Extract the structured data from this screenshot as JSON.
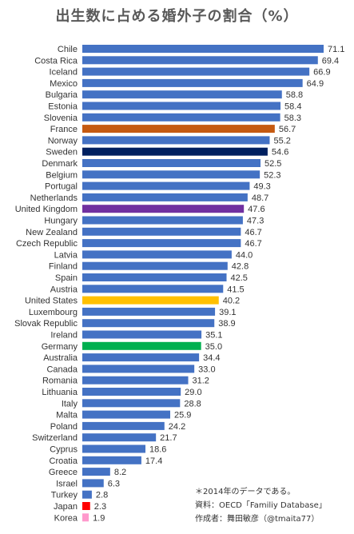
{
  "chart_data": {
    "type": "bar",
    "orientation": "horizontal",
    "title": "出生数に占める婚外子の割合（%）",
    "categories": [
      "Chile",
      "Costa Rica",
      "Iceland",
      "Mexico",
      "Bulgaria",
      "Estonia",
      "Slovenia",
      "France",
      "Norway",
      "Sweden",
      "Denmark",
      "Belgium",
      "Portugal",
      "Netherlands",
      "United Kingdom",
      "Hungary",
      "New Zealand",
      "Czech Republic",
      "Latvia",
      "Finland",
      "Spain",
      "Austria",
      "United States",
      "Luxembourg",
      "Slovak Republic",
      "Ireland",
      "Germany",
      "Australia",
      "Canada",
      "Romania",
      "Lithuania",
      "Italy",
      "Malta",
      "Poland",
      "Switzerland",
      "Cyprus",
      "Croatia",
      "Greece",
      "Israel",
      "Turkey",
      "Japan",
      "Korea"
    ],
    "values": [
      71.1,
      69.4,
      66.9,
      64.9,
      58.8,
      58.4,
      58.3,
      56.7,
      55.2,
      54.6,
      52.5,
      52.3,
      49.3,
      48.7,
      47.6,
      47.3,
      46.7,
      46.7,
      44.0,
      42.8,
      42.5,
      41.5,
      40.2,
      39.1,
      38.9,
      35.1,
      35.0,
      34.4,
      33.0,
      31.2,
      29.0,
      28.8,
      25.9,
      24.2,
      21.7,
      18.6,
      17.4,
      8.2,
      6.3,
      2.8,
      2.3,
      1.9
    ],
    "value_labels": [
      "71.1",
      "69.4",
      "66.9",
      "64.9",
      "58.8",
      "58.4",
      "58.3",
      "56.7",
      "55.2",
      "54.6",
      "52.5",
      "52.3",
      "49.3",
      "48.7",
      "47.6",
      "47.3",
      "46.7",
      "46.7",
      "44.0",
      "42.8",
      "42.5",
      "41.5",
      "40.2",
      "39.1",
      "38.9",
      "35.1",
      "35.0",
      "34.4",
      "33.0",
      "31.2",
      "29.0",
      "28.8",
      "25.9",
      "24.2",
      "21.7",
      "18.6",
      "17.4",
      "8.2",
      "6.3",
      "2.8",
      "2.3",
      "1.9"
    ],
    "colors": {
      "default": "#4472c4",
      "France": "#c55a11",
      "Sweden": "#002060",
      "United Kingdom": "#7030a0",
      "United States": "#ffc000",
      "Germany": "#00b050",
      "Japan": "#ff0000",
      "Korea": "#ff99cc"
    },
    "xlim": [
      0,
      75
    ],
    "grid": false,
    "legend": "none"
  },
  "notes": [
    "＊2014年のデータである。",
    "資料：OECD「Familiy Database」",
    "作成者：舞田敏彦（@tmaita77）"
  ]
}
